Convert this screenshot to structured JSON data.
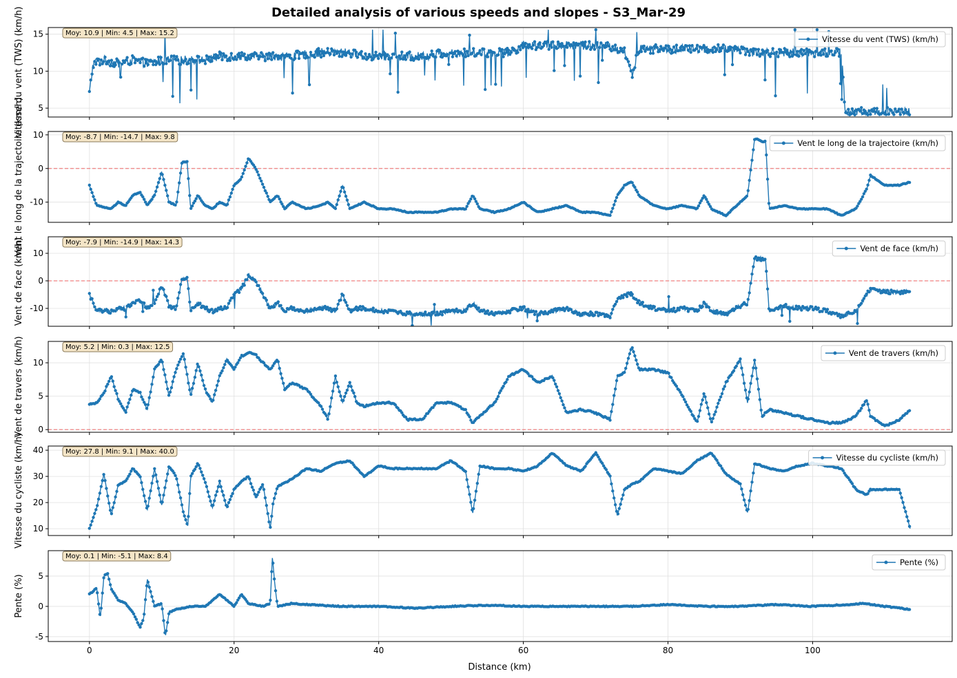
{
  "figure": {
    "title": "Detailed analysis of various speeds and slopes  - S3_Mar-29",
    "xlabel": "Distance (km)"
  },
  "colors": {
    "series": "#1f77b4",
    "zero_line": "#f08080",
    "stats_fill": "#f5e6c8",
    "stats_edge": "#8a7a5a",
    "grid": "#e0e0e0"
  },
  "chart_data": [
    {
      "type": "line",
      "ylabel": "Vitesse du vent (TWS) (km/h)",
      "legend": "Vitesse du vent (TWS) (km/h)",
      "legend_position": "top-right",
      "stats": "Moy: 10.9 | Min: 4.5 | Max: 15.2",
      "xlim": [
        -5.7,
        119.3
      ],
      "ylim": [
        3.8,
        15.9
      ],
      "yticks": [
        5,
        10,
        15
      ],
      "zero_line": false,
      "noise": 1.2,
      "spikes": 0.35,
      "x": [
        0,
        0.5,
        2,
        4,
        6,
        8,
        10,
        12,
        14,
        16,
        18,
        20,
        22,
        24,
        26,
        28,
        30,
        32,
        34,
        36,
        38,
        40,
        42,
        44,
        46,
        48,
        50,
        52,
        54,
        56,
        58,
        60,
        62,
        64,
        66,
        68,
        70,
        72,
        74,
        75,
        76,
        78,
        80,
        82,
        84,
        86,
        88,
        90,
        92,
        94,
        96,
        98,
        100,
        102,
        104,
        104.5,
        106,
        108,
        110,
        112,
        113.5
      ],
      "y": [
        7,
        11,
        11.5,
        11,
        11.5,
        11,
        11.5,
        11.5,
        11.5,
        11.5,
        12,
        12,
        12,
        12,
        12,
        12,
        12.3,
        12.5,
        12.5,
        12.5,
        12,
        12,
        12,
        12,
        12,
        12.3,
        12.5,
        12.5,
        12.5,
        12.5,
        12.5,
        13.5,
        13.5,
        13.5,
        13.5,
        13.5,
        13.5,
        13.3,
        12.8,
        9.5,
        13,
        13,
        13,
        13,
        13,
        13,
        13,
        13,
        12.5,
        12.5,
        12.5,
        12.5,
        12.5,
        12.5,
        12.5,
        4.5,
        4.5,
        4.5,
        4.5,
        4.5,
        4.5
      ]
    },
    {
      "type": "line",
      "ylabel": "Vent le long de la trajectoire (km/h)",
      "legend": "Vent le long de la trajectoire (km/h)",
      "legend_position": "top-right",
      "stats": "Moy: -8.7 | Min: -14.7 | Max: 9.8",
      "xlim": [
        -5.7,
        119.3
      ],
      "ylim": [
        -16,
        11
      ],
      "yticks": [
        -10,
        0,
        10
      ],
      "zero_line": true,
      "noise": 0.25,
      "spikes": 0,
      "x": [
        0,
        1,
        2,
        3,
        4,
        5,
        6,
        7,
        8,
        9,
        10,
        11,
        12,
        12.8,
        13.5,
        14,
        15,
        16,
        17,
        18,
        19,
        20,
        21,
        22,
        23,
        24,
        25,
        26,
        27,
        28,
        30,
        32,
        33,
        34,
        35,
        36,
        37,
        38,
        40,
        42,
        44,
        46,
        48,
        50,
        52,
        53,
        54,
        56,
        58,
        60,
        62,
        64,
        66,
        68,
        70,
        72,
        73,
        74,
        75,
        76,
        78,
        80,
        82,
        84,
        85,
        86,
        88,
        90,
        91,
        92,
        93,
        93.5,
        94,
        96,
        98,
        100,
        102,
        104,
        106,
        107.5,
        108,
        110,
        112,
        113.5
      ],
      "y": [
        -5,
        -11,
        -11.5,
        -12,
        -10,
        -11,
        -8,
        -7,
        -11,
        -8,
        -1,
        -10,
        -11,
        2,
        2,
        -12,
        -8,
        -11,
        -12,
        -10,
        -11,
        -5,
        -3,
        3,
        0,
        -5,
        -10,
        -8,
        -12,
        -10,
        -12,
        -11,
        -10,
        -12,
        -5,
        -12,
        -11,
        -10,
        -12,
        -12,
        -13,
        -13,
        -13,
        -12,
        -12,
        -8,
        -12,
        -13,
        -12,
        -10,
        -13,
        -12,
        -11,
        -13,
        -13,
        -14,
        -8,
        -5,
        -4,
        -8,
        -11,
        -12,
        -11,
        -12,
        -8,
        -12,
        -14,
        -10,
        -8,
        9,
        8,
        8,
        -12,
        -11,
        -12,
        -12,
        -12,
        -14,
        -12,
        -6,
        -2,
        -5,
        -5,
        -4
      ]
    },
    {
      "type": "line",
      "ylabel": "Vent de face (km/h)",
      "legend": "Vent de face (km/h)",
      "legend_position": "top-right",
      "stats": "Moy: -7.9 | Min: -14.9 | Max: 14.3",
      "xlim": [
        -5.7,
        119.3
      ],
      "ylim": [
        -16.5,
        16
      ],
      "yticks": [
        -10,
        0,
        10
      ],
      "zero_line": true,
      "noise": 1.5,
      "spikes": 0.08,
      "x": [
        0,
        1,
        2,
        3,
        4,
        5,
        6,
        7,
        8,
        9,
        10,
        11,
        12,
        12.8,
        13.5,
        14,
        15,
        16,
        17,
        18,
        19,
        20,
        21,
        22,
        23,
        24,
        25,
        26,
        27,
        28,
        30,
        32,
        33,
        34,
        35,
        36,
        37,
        38,
        40,
        42,
        44,
        46,
        48,
        50,
        52,
        53,
        54,
        56,
        58,
        60,
        62,
        64,
        66,
        68,
        70,
        72,
        73,
        74,
        75,
        76,
        78,
        80,
        82,
        84,
        85,
        86,
        88,
        90,
        91,
        92,
        93,
        93.5,
        94,
        96,
        98,
        100,
        102,
        104,
        106,
        107.5,
        108,
        110,
        112,
        113.5
      ],
      "y": [
        -5,
        -11,
        -11,
        -11,
        -10,
        -10,
        -8,
        -7,
        -10,
        -8,
        -2,
        -9,
        -10,
        1,
        1,
        -11,
        -8,
        -10,
        -11,
        -10,
        -10,
        -5,
        -3,
        2,
        0,
        -5,
        -10,
        -8,
        -11,
        -10,
        -11,
        -10,
        -10,
        -11,
        -5,
        -11,
        -10,
        -10,
        -11,
        -11,
        -12,
        -12,
        -12,
        -11,
        -11,
        -8,
        -11,
        -12,
        -11,
        -10,
        -12,
        -11,
        -10,
        -12,
        -12,
        -13,
        -7,
        -5,
        -5,
        -8,
        -10,
        -11,
        -10,
        -11,
        -8,
        -11,
        -12,
        -9,
        -8,
        8,
        8,
        7,
        -11,
        -9,
        -10,
        -10,
        -11,
        -13,
        -11,
        -5,
        -3,
        -4,
        -4,
        -4
      ]
    },
    {
      "type": "line",
      "ylabel": "Vent de travers (km/h)",
      "legend": "Vent de travers (km/h)",
      "legend_position": "top-right",
      "stats": "Moy: 5.2 | Min: 0.3 | Max: 12.5",
      "xlim": [
        -5.7,
        119.3
      ],
      "ylim": [
        -0.4,
        13.2
      ],
      "yticks": [
        0,
        5,
        10
      ],
      "zero_line": true,
      "noise": 0.25,
      "spikes": 0,
      "x": [
        0,
        1,
        2,
        3,
        4,
        5,
        6,
        7,
        8,
        9,
        10,
        11,
        12,
        13,
        14,
        15,
        16,
        17,
        18,
        19,
        20,
        21,
        22,
        23,
        24,
        25,
        26,
        27,
        28,
        30,
        32,
        33,
        34,
        35,
        36,
        37,
        38,
        40,
        42,
        44,
        46,
        48,
        50,
        52,
        53,
        54,
        56,
        58,
        60,
        62,
        64,
        66,
        68,
        70,
        72,
        73,
        74,
        75,
        76,
        78,
        80,
        82,
        84,
        85,
        86,
        88,
        90,
        91,
        92,
        93,
        94,
        96,
        98,
        100,
        102,
        104,
        106,
        107.5,
        108,
        110,
        112,
        113.5
      ],
      "y": [
        3.7,
        4,
        5.5,
        8,
        4.5,
        2.5,
        6,
        5.5,
        3,
        9,
        10.5,
        5,
        9,
        11.5,
        5,
        10,
        6,
        4,
        8,
        10.5,
        9,
        11,
        11.5,
        11.2,
        10,
        9,
        10.5,
        6,
        7,
        6,
        3.5,
        1.5,
        8,
        4,
        7,
        4,
        3.5,
        4,
        4,
        1.5,
        1.5,
        4,
        4,
        3,
        1,
        2,
        4,
        8,
        9,
        7,
        8,
        2.5,
        3,
        2.5,
        1.5,
        8,
        8.5,
        12.5,
        9,
        9,
        8.5,
        5,
        1,
        5.5,
        1,
        7,
        10.5,
        4,
        10.5,
        2,
        3,
        2.5,
        2,
        1.5,
        1,
        1,
        2,
        4.5,
        2,
        0.5,
        1.5,
        3
      ]
    },
    {
      "type": "line",
      "ylabel": "Vitesse du cycliste (km/h)",
      "legend": "Vitesse du cycliste (km/h)",
      "legend_position": "top-right",
      "stats": "Moy: 27.8 | Min: 9.1 | Max: 40.0",
      "xlim": [
        -5.7,
        119.3
      ],
      "ylim": [
        7.4,
        41.6
      ],
      "yticks": [
        10,
        20,
        30,
        40
      ],
      "zero_line": false,
      "noise": 0.4,
      "spikes": 0,
      "x": [
        0,
        1,
        2,
        3,
        4,
        5,
        6,
        7,
        8,
        9,
        10,
        11,
        12,
        13,
        13.6,
        14,
        15,
        16,
        17,
        18,
        19,
        20,
        21,
        22,
        23,
        24,
        25,
        25.4,
        26,
        28,
        30,
        32,
        34,
        36,
        38,
        40,
        42,
        44,
        46,
        48,
        50,
        52,
        53,
        54,
        56,
        58,
        60,
        62,
        64,
        66,
        68,
        70,
        72,
        73,
        74,
        75,
        76,
        78,
        80,
        82,
        84,
        86,
        88,
        90,
        91,
        92,
        94,
        96,
        98,
        100,
        102,
        104,
        106,
        107.5,
        108,
        110,
        112,
        113.5
      ],
      "y": [
        10,
        18,
        31,
        15,
        27,
        28,
        33,
        30,
        17,
        33,
        19,
        34,
        30,
        16,
        11,
        30,
        35,
        28,
        18,
        28,
        18,
        25,
        28,
        30,
        22,
        27,
        10,
        20,
        26,
        29,
        33,
        32,
        35,
        36,
        30,
        34,
        33,
        33,
        33,
        33,
        36,
        32,
        16,
        34,
        33,
        33,
        32,
        34,
        39,
        34,
        32,
        39,
        30,
        15,
        25,
        27,
        28,
        33,
        32,
        31,
        36,
        39,
        31,
        27,
        16,
        35,
        33,
        32,
        34,
        35,
        34,
        33,
        25,
        23,
        25,
        25,
        25,
        10
      ]
    },
    {
      "type": "line",
      "ylabel": "Pente (%)",
      "legend": "Pente (%)",
      "legend_position": "top-right",
      "stats": "Moy: 0.1 | Min: -5.1 | Max: 8.4",
      "xlim": [
        -5.7,
        119.3
      ],
      "ylim": [
        -5.8,
        9.2
      ],
      "yticks": [
        -5,
        0,
        5
      ],
      "zero_line": false,
      "noise": 0.15,
      "spikes": 0,
      "x": [
        0,
        1,
        1.5,
        2,
        2.5,
        3,
        4,
        5,
        6,
        7,
        7.5,
        8,
        9,
        10,
        10.5,
        11,
        12,
        14,
        16,
        18,
        20,
        21,
        22,
        24,
        25,
        25.3,
        25.6,
        26,
        28,
        30,
        35,
        40,
        45,
        50,
        55,
        60,
        65,
        70,
        75,
        80,
        85,
        90,
        95,
        100,
        105,
        107,
        110,
        113.5
      ],
      "y": [
        2,
        3,
        -2,
        5,
        5.5,
        3,
        1,
        0.5,
        -1,
        -3.5,
        -2,
        4.5,
        0,
        0.5,
        -5,
        -1,
        -0.5,
        0,
        0,
        2,
        0,
        2,
        0.5,
        0,
        0.5,
        8.3,
        4,
        0,
        0.5,
        0.3,
        0,
        0,
        -0.3,
        0,
        0.2,
        0,
        0,
        0,
        0,
        0.3,
        0,
        0,
        0.3,
        0,
        0.3,
        0.5,
        0,
        -0.5
      ]
    }
  ]
}
